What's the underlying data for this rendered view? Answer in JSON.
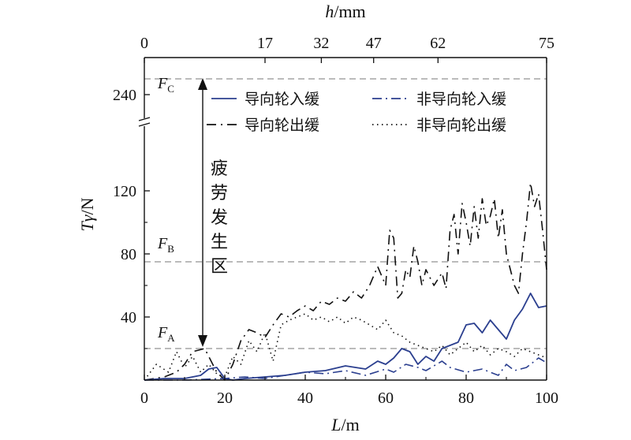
{
  "chart_data": {
    "type": "line",
    "xlabel": {
      "var": "L",
      "unit": "/m"
    },
    "ylabel": {
      "var": "Tγ",
      "unit": "/N"
    },
    "top_axis_label": {
      "var": "h",
      "unit": "/mm"
    },
    "xlim": [
      0,
      100
    ],
    "x_ticks": [
      "0",
      "20",
      "40",
      "60",
      "80",
      "100"
    ],
    "y_ticks": [
      "40",
      "80",
      "120",
      "240"
    ],
    "y_axis_break": true,
    "top_ticks": [
      {
        "label": "0",
        "at_L": 0
      },
      {
        "label": "17",
        "at_L": 30
      },
      {
        "label": "32",
        "at_L": 44
      },
      {
        "label": "47",
        "at_L": 57
      },
      {
        "label": "62",
        "at_L": 73
      },
      {
        "label": "75",
        "at_L": 100
      }
    ],
    "thresholds": [
      {
        "name": "F",
        "sub": "A",
        "value": 20
      },
      {
        "name": "F",
        "sub": "B",
        "value": 75
      },
      {
        "name": "F",
        "sub": "C",
        "value": 250
      }
    ],
    "zone_label": [
      "疲",
      "劳",
      "发",
      "生",
      "区"
    ],
    "legend_position": "top-right",
    "series": [
      {
        "name": "导向轮入缓",
        "color": "#2b3f8f",
        "dash": "solid",
        "x": [
          0,
          5,
          10,
          14,
          16,
          18,
          20,
          22,
          25,
          30,
          35,
          40,
          45,
          50,
          55,
          58,
          60,
          62,
          64,
          66,
          68,
          70,
          72,
          74,
          76,
          78,
          80,
          82,
          84,
          86,
          88,
          90,
          92,
          94,
          96,
          98,
          100
        ],
        "y": [
          0,
          1,
          1,
          3,
          7,
          8,
          1,
          0,
          1,
          2,
          3,
          5,
          6,
          9,
          7,
          12,
          10,
          14,
          20,
          18,
          10,
          15,
          12,
          20,
          22,
          24,
          35,
          36,
          30,
          38,
          32,
          26,
          38,
          45,
          55,
          46,
          47
        ]
      },
      {
        "name": "非导向轮入缓",
        "color": "#2b3f8f",
        "dash": "dashdot",
        "x": [
          0,
          10,
          20,
          25,
          30,
          35,
          40,
          45,
          50,
          55,
          60,
          62,
          65,
          68,
          70,
          74,
          76,
          80,
          84,
          88,
          90,
          92,
          95,
          98,
          100
        ],
        "y": [
          0,
          0,
          1,
          2,
          1,
          3,
          5,
          4,
          6,
          3,
          7,
          5,
          10,
          8,
          6,
          12,
          8,
          5,
          7,
          3,
          10,
          6,
          8,
          14,
          11
        ]
      },
      {
        "name": "导向轮出缓",
        "color": "#111111",
        "dash": "dash",
        "x": [
          0,
          5,
          8,
          10,
          12,
          15,
          18,
          20,
          22,
          24,
          26,
          28,
          30,
          32,
          34,
          36,
          38,
          40,
          42,
          44,
          46,
          48,
          50,
          52,
          54,
          56,
          58,
          60,
          61,
          62,
          63,
          64,
          65,
          66,
          67,
          68,
          69,
          70,
          72,
          74,
          75,
          76,
          77,
          78,
          79,
          80,
          81,
          82,
          83,
          84,
          85,
          86,
          87,
          88,
          89,
          90,
          91,
          92,
          93,
          94,
          95,
          96,
          97,
          98,
          99,
          100
        ],
        "y": [
          0,
          2,
          5,
          10,
          18,
          20,
          5,
          0,
          10,
          25,
          32,
          30,
          27,
          35,
          42,
          40,
          44,
          47,
          44,
          50,
          48,
          52,
          50,
          56,
          52,
          60,
          72,
          60,
          95,
          90,
          52,
          55,
          70,
          65,
          85,
          75,
          60,
          70,
          60,
          68,
          58,
          95,
          105,
          80,
          112,
          100,
          85,
          110,
          90,
          115,
          98,
          104,
          115,
          90,
          108,
          80,
          70,
          60,
          55,
          80,
          100,
          125,
          110,
          118,
          95,
          70
        ]
      },
      {
        "name": "非导向轮出缓",
        "color": "#111111",
        "dash": "dot",
        "x": [
          0,
          3,
          6,
          8,
          10,
          12,
          14,
          16,
          18,
          20,
          22,
          24,
          26,
          28,
          30,
          32,
          34,
          36,
          38,
          40,
          42,
          44,
          46,
          48,
          50,
          52,
          54,
          56,
          58,
          60,
          62,
          64,
          66,
          68,
          70,
          72,
          74,
          76,
          78,
          80,
          82,
          84,
          86,
          88,
          90,
          92,
          94,
          96,
          98,
          100
        ],
        "y": [
          0,
          10,
          5,
          18,
          8,
          15,
          5,
          10,
          4,
          2,
          15,
          10,
          25,
          18,
          30,
          12,
          35,
          38,
          40,
          42,
          38,
          40,
          37,
          40,
          36,
          40,
          38,
          35,
          32,
          38,
          30,
          28,
          24,
          22,
          20,
          18,
          22,
          16,
          20,
          24,
          18,
          22,
          16,
          20,
          18,
          15,
          20,
          18,
          16,
          14
        ]
      }
    ]
  }
}
